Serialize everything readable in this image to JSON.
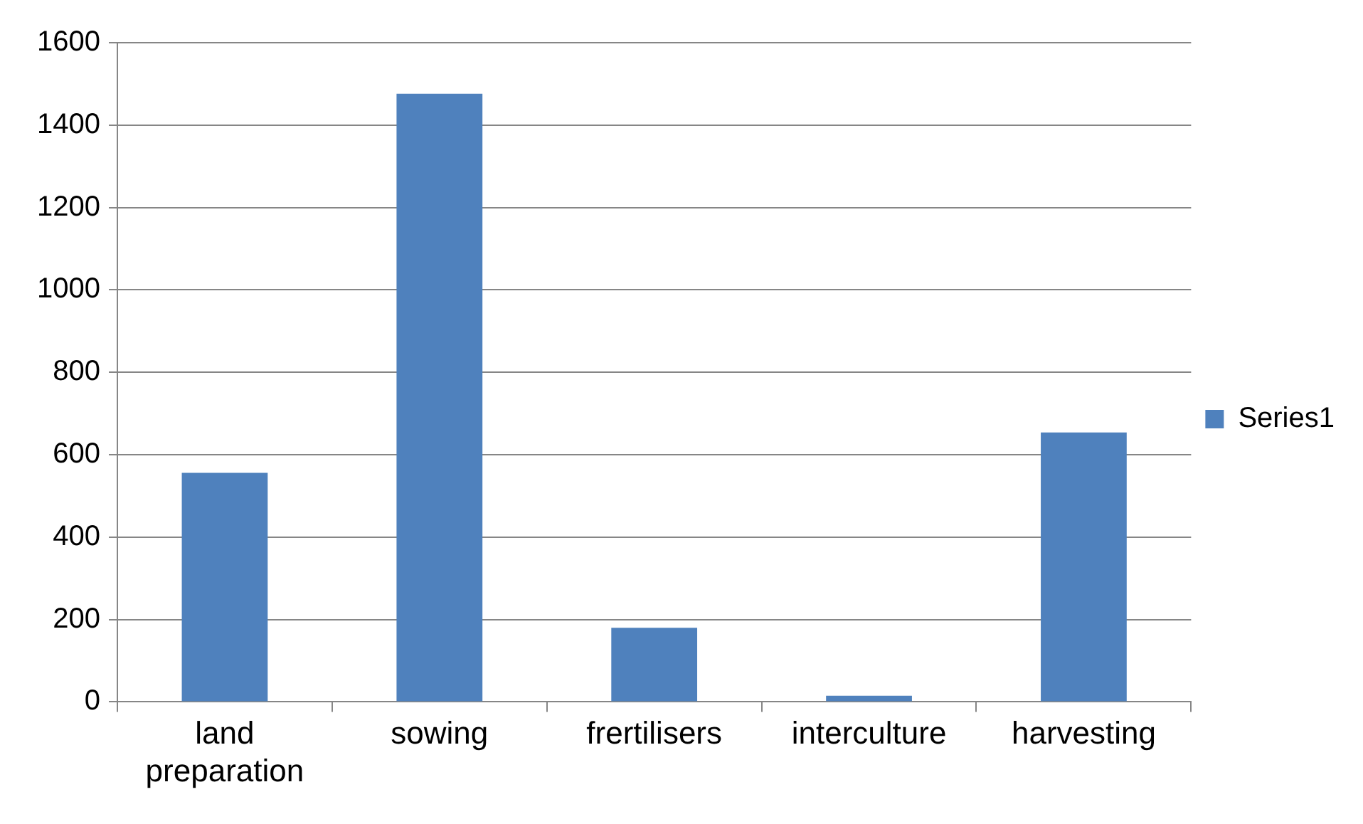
{
  "chart_data": {
    "type": "bar",
    "categories": [
      "land preparation",
      "sowing",
      "frertilisers",
      "interculture",
      "harvesting"
    ],
    "series": [
      {
        "name": "Series1",
        "color": "#4f81bd",
        "values": [
          556,
          1476,
          180,
          15,
          654
        ]
      }
    ],
    "ylim": [
      0,
      1600
    ],
    "yticks": [
      0,
      200,
      400,
      600,
      800,
      1000,
      1200,
      1400,
      1600
    ],
    "grid": "y",
    "legend": "right"
  }
}
